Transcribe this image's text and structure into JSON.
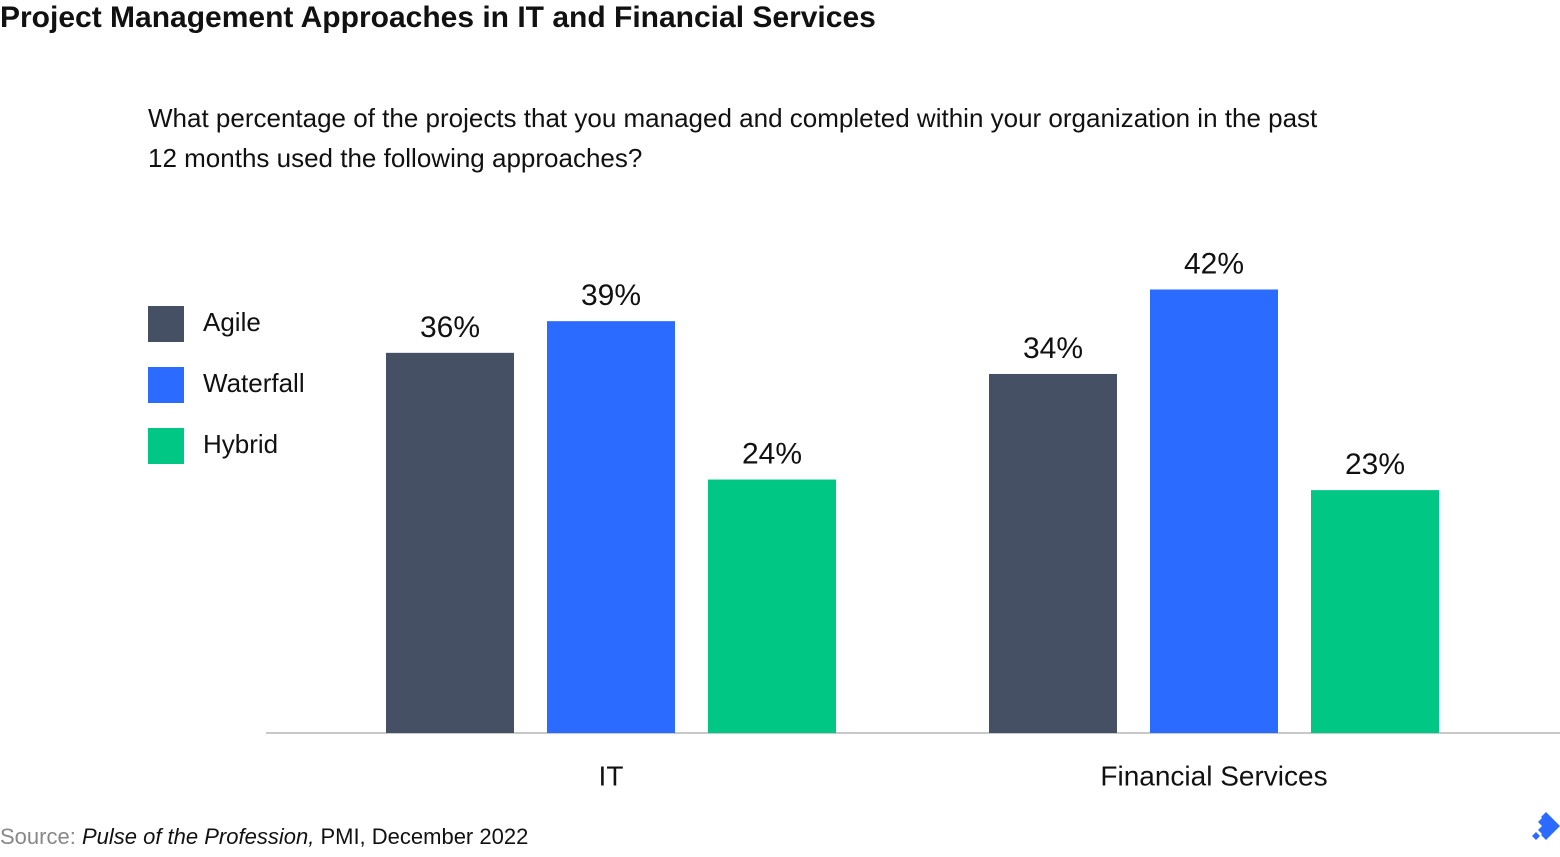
{
  "chart_data": {
    "type": "bar",
    "title": "Project Management Approaches in IT and Financial Services",
    "subtitle": [
      "What percentage of the projects that you managed and completed within your organization in the past",
      "12 months used the following approaches?"
    ],
    "categories": [
      "IT",
      "Financial Services"
    ],
    "series": [
      {
        "name": "Agile",
        "color": "#465064",
        "values": [
          36,
          34
        ],
        "value_labels": [
          "36%",
          "34%"
        ]
      },
      {
        "name": "Waterfall",
        "color": "#2b6bff",
        "values": [
          39,
          42
        ],
        "value_labels": [
          "39%",
          "42%"
        ]
      },
      {
        "name": "Hybrid",
        "color": "#00c784",
        "values": [
          24,
          23
        ],
        "value_labels": [
          "24%",
          "23%"
        ]
      }
    ],
    "legend": "left",
    "source": {
      "label": "Source:",
      "publication": "Pulse of the Profession,",
      "rest": "PMI, December 2022"
    }
  }
}
